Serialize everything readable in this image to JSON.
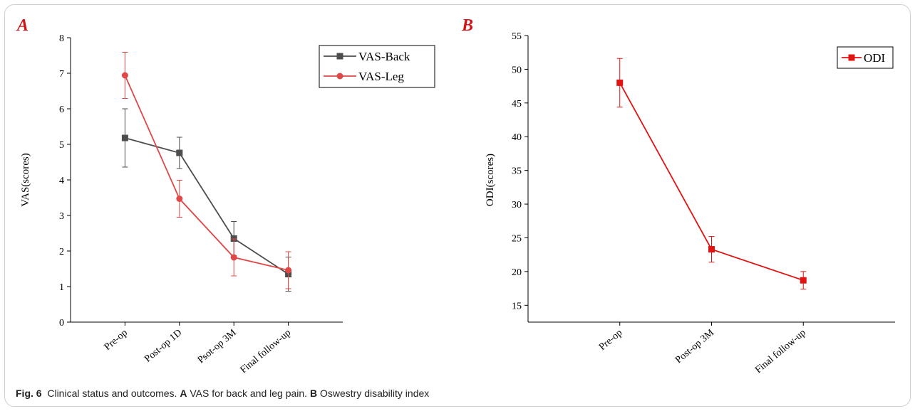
{
  "caption": {
    "fig_label": "Fig. 6",
    "text1": "Clinical status and outcomes.",
    "a_label": "A",
    "text2": "VAS for back and leg pain.",
    "b_label": "B",
    "text3": "Oswestry disability index"
  },
  "colors": {
    "back": "#4d4d4d",
    "leg": "#e04848",
    "odi": "#e11414"
  },
  "chart_data": [
    {
      "panel_label": "A",
      "type": "line",
      "categories": [
        "Pre-op",
        "Post-op 1D",
        "Psot-op 3M",
        "Final follow-up"
      ],
      "ylabel": "VAS(scores)",
      "xlabel": "",
      "ylim": [
        0,
        8
      ],
      "yticks": [
        "0",
        "1",
        "2",
        "3",
        "4",
        "5",
        "6",
        "7",
        "8"
      ],
      "legend_position": "top-right",
      "series": [
        {
          "name": "VAS-Back",
          "marker": "square",
          "values": [
            5.18,
            4.76,
            2.35,
            1.35
          ],
          "error": [
            0.82,
            0.44,
            0.48,
            0.48
          ]
        },
        {
          "name": "VAS-Leg",
          "marker": "circle",
          "values": [
            6.94,
            3.47,
            1.82,
            1.46
          ],
          "error": [
            0.65,
            0.52,
            0.52,
            0.52
          ]
        }
      ]
    },
    {
      "panel_label": "B",
      "type": "line",
      "categories": [
        "Pre-op",
        "Post-op 3M",
        "Final follow-up"
      ],
      "ylabel": "ODI(scores)",
      "xlabel": "",
      "ylim": [
        12.5,
        55
      ],
      "yticks": [
        "15",
        "20",
        "25",
        "30",
        "35",
        "40",
        "45",
        "50",
        "55"
      ],
      "legend_position": "top-right",
      "series": [
        {
          "name": "ODI",
          "marker": "square",
          "values": [
            48.0,
            23.3,
            18.7
          ],
          "error": [
            3.6,
            1.9,
            1.3
          ]
        }
      ]
    }
  ]
}
